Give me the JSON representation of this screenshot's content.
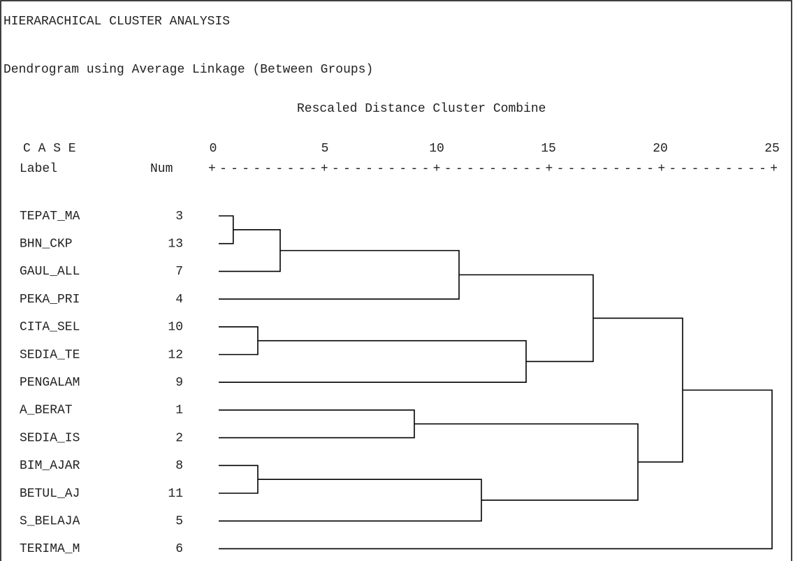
{
  "chart_data": {
    "type": "dendrogram",
    "title": "HIERARACHICAL CLUSTER ANALYSIS",
    "subtitle": "Dendrogram using Average Linkage (Between Groups)",
    "x_label": "Rescaled Distance Cluster Combine",
    "case_header": "C A S E",
    "label_header": "Label",
    "num_header": "Num",
    "axis_rule": "+---------+---------+---------+---------+---------+",
    "xlim": [
      0,
      25
    ],
    "xticks": [
      0,
      5,
      10,
      15,
      20,
      25
    ],
    "tree": {
      "distance": 25,
      "children": [
        {
          "distance": 21,
          "children": [
            {
              "distance": 17,
              "children": [
                {
                  "distance": 11,
                  "children": [
                    {
                      "distance": 3,
                      "children": [
                        {
                          "distance": 0.9,
                          "children": [
                            {
                              "label": "TEPAT_MA",
                              "num": 3
                            },
                            {
                              "label": "BHN_CKP",
                              "num": 13
                            }
                          ]
                        },
                        {
                          "label": "GAUL_ALL",
                          "num": 7
                        }
                      ]
                    },
                    {
                      "label": "PEKA_PRI",
                      "num": 4
                    }
                  ]
                },
                {
                  "distance": 14,
                  "children": [
                    {
                      "distance": 2,
                      "children": [
                        {
                          "label": "CITA_SEL",
                          "num": 10
                        },
                        {
                          "label": "SEDIA_TE",
                          "num": 12
                        }
                      ]
                    },
                    {
                      "label": "PENGALAM",
                      "num": 9
                    }
                  ]
                }
              ]
            },
            {
              "distance": 19,
              "children": [
                {
                  "distance": 9,
                  "children": [
                    {
                      "label": "A_BERAT",
                      "num": 1
                    },
                    {
                      "label": "SEDIA_IS",
                      "num": 2
                    }
                  ]
                },
                {
                  "distance": 12,
                  "children": [
                    {
                      "distance": 2,
                      "children": [
                        {
                          "label": "BIM_AJAR",
                          "num": 8
                        },
                        {
                          "label": "BETUL_AJ",
                          "num": 11
                        }
                      ]
                    },
                    {
                      "label": "S_BELAJA",
                      "num": 5
                    }
                  ]
                }
              ]
            }
          ]
        },
        {
          "label": "TERIMA_M",
          "num": 6
        }
      ]
    }
  }
}
